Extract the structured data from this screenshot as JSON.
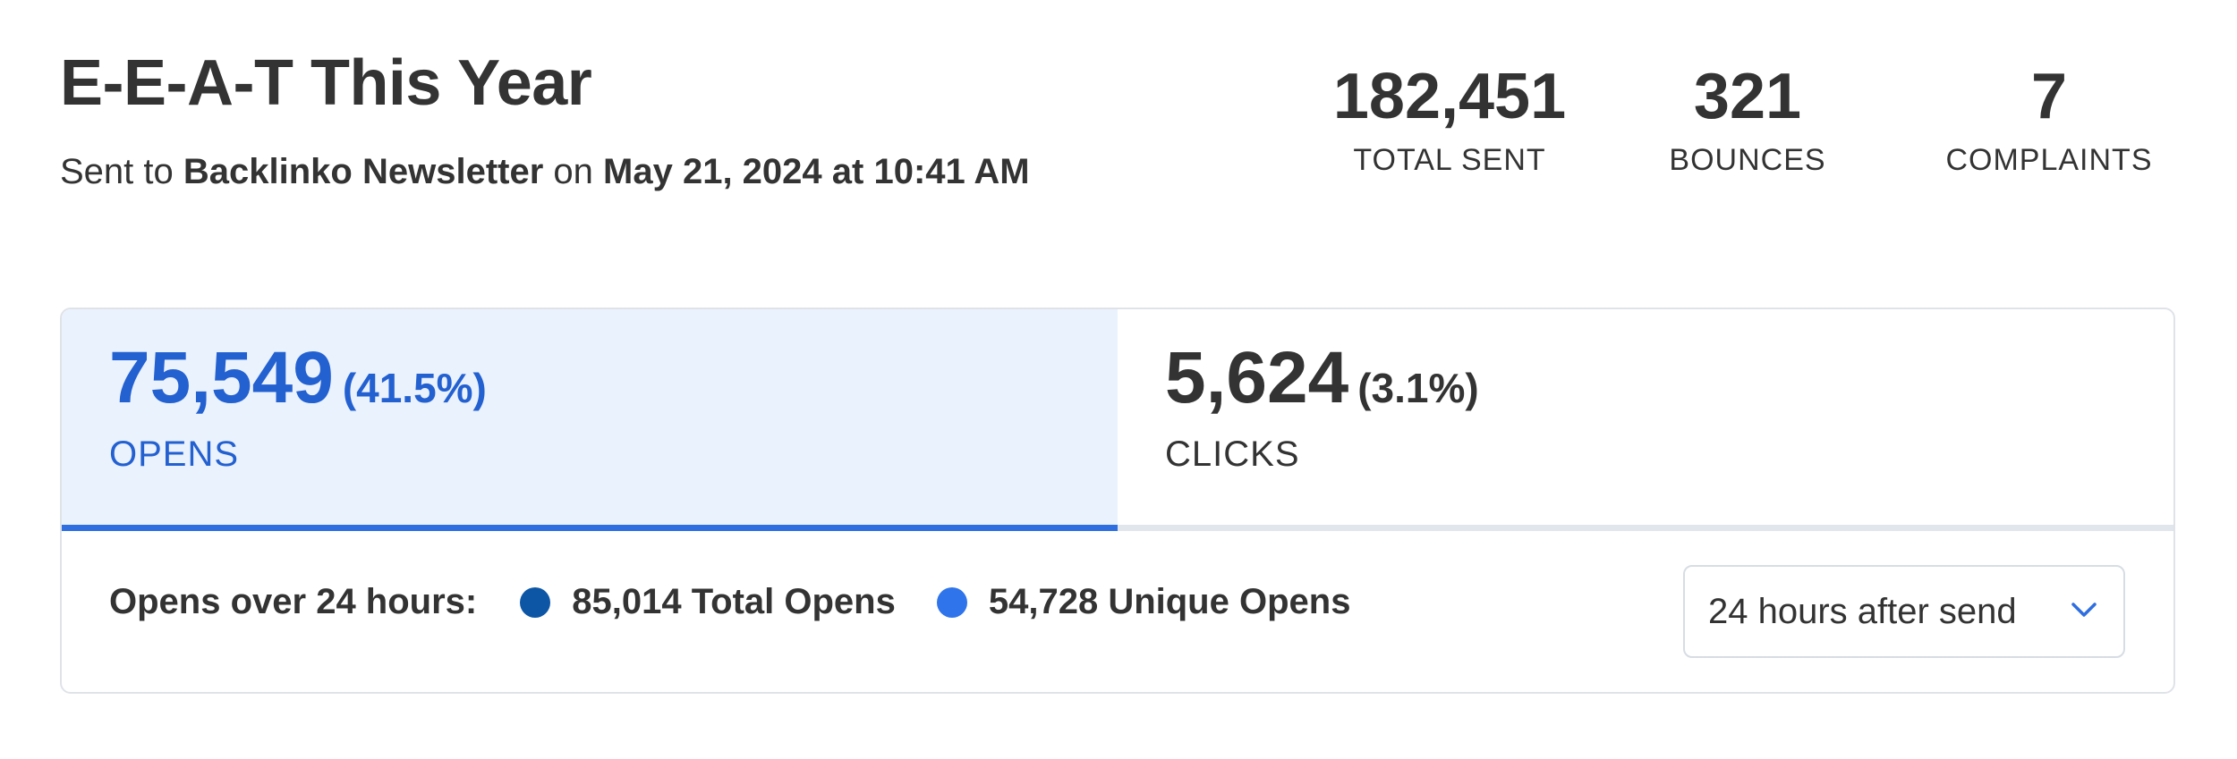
{
  "header": {
    "title": "E-E-A-T This Year",
    "sent_prefix": "Sent to",
    "list_name": "Backlinko Newsletter",
    "on_word": "on",
    "sent_date": "May 21, 2024 at 10:41 AM"
  },
  "stats": [
    {
      "value": "182,451",
      "label": "TOTAL SENT"
    },
    {
      "value": "321",
      "label": "BOUNCES"
    },
    {
      "value": "7",
      "label": "COMPLAINTS"
    }
  ],
  "tabs": {
    "opens": {
      "value": "75,549",
      "percent": "(41.5%)",
      "label": "OPENS"
    },
    "clicks": {
      "value": "5,624",
      "percent": "(3.1%)",
      "label": "CLICKS"
    }
  },
  "legend": {
    "lead": "Opens over 24 hours:",
    "items": [
      {
        "text": "85,014 Total Opens",
        "color": "#0d56a6"
      },
      {
        "text": "54,728 Unique Opens",
        "color": "#2f74ea"
      }
    ]
  },
  "range_select": {
    "value": "24 hours after send",
    "icon": "chevron-down-icon",
    "accent": "#2e6ee0"
  }
}
